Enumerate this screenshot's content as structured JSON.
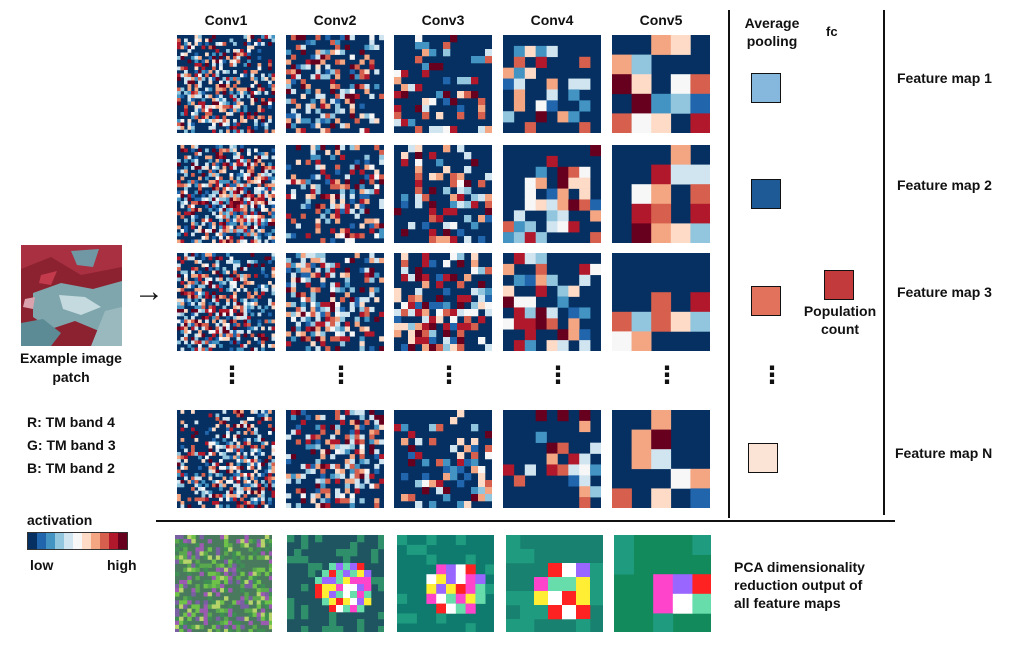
{
  "input": {
    "title_line1": "Example image",
    "title_line2": "patch",
    "bands": [
      "R: TM band 4",
      "G: TM band 3",
      "B: TM band 2"
    ],
    "arrow": "→"
  },
  "layers": [
    "Conv1",
    "Conv2",
    "Conv3",
    "Conv4",
    "Conv5"
  ],
  "pooling": {
    "title_line1": "Average",
    "title_line2": "pooling",
    "colors": [
      "#85b8dc",
      "#1d5a96",
      "#e2725c",
      "#fbe4d6"
    ]
  },
  "fc": {
    "title": "fc",
    "color": "#c23a3c",
    "label_line1": "Population",
    "label_line2": "count"
  },
  "feature_maps": [
    "Feature map 1",
    "Feature map 2",
    "Feature map 3",
    "Feature map N"
  ],
  "ellipsis": "⋮",
  "legend": {
    "title": "activation",
    "low": "low",
    "high": "high",
    "colors": [
      "#053061",
      "#2166ac",
      "#4393c3",
      "#92c5de",
      "#d1e5f0",
      "#f7f7f7",
      "#fddbc7",
      "#f4a582",
      "#d6604d",
      "#b2182b",
      "#67001f"
    ]
  },
  "pca": {
    "line1": "PCA dimensionality",
    "line2": "reduction output of",
    "line3": "all feature maps"
  }
}
